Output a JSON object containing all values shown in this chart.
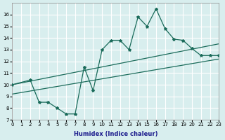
{
  "xlabel": "Humidex (Indice chaleur)",
  "ylabel": "",
  "bg_color": "#d8eeee",
  "grid_color": "#ffffff",
  "line_color": "#1a6b5a",
  "xlim": [
    0,
    23
  ],
  "ylim": [
    7,
    17
  ],
  "xticks": [
    0,
    1,
    2,
    3,
    4,
    5,
    6,
    7,
    8,
    9,
    10,
    11,
    12,
    13,
    14,
    15,
    16,
    17,
    18,
    19,
    20,
    21,
    22,
    23
  ],
  "yticks": [
    7,
    8,
    9,
    10,
    11,
    12,
    13,
    14,
    15,
    16
  ],
  "main_line_x": [
    0,
    2,
    3,
    4,
    5,
    6,
    7,
    8,
    9,
    10,
    11,
    12,
    13,
    14,
    15,
    16,
    17,
    18,
    19,
    20,
    21,
    22,
    23
  ],
  "main_line_y": [
    10.0,
    10.4,
    8.5,
    8.5,
    8.0,
    7.5,
    7.5,
    11.5,
    9.5,
    13.0,
    13.8,
    13.8,
    13.0,
    15.8,
    15.0,
    16.5,
    14.8,
    13.9,
    13.8,
    13.1,
    12.5,
    12.5,
    12.5
  ],
  "line1_x": [
    0,
    23
  ],
  "line1_y": [
    10.0,
    13.5
  ],
  "line2_x": [
    0,
    23
  ],
  "line2_y": [
    9.2,
    12.2
  ]
}
